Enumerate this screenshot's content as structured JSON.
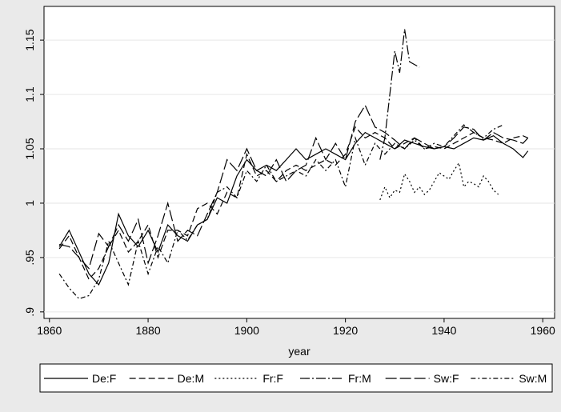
{
  "chart_data": {
    "type": "line",
    "x_label": "year",
    "legend": "bottom",
    "grid": true,
    "xlim": [
      1858.9,
      1962.4
    ],
    "xticks": [
      1860,
      1880,
      1900,
      1920,
      1940,
      1960
    ],
    "ylim": [
      0.894,
      1.181
    ],
    "yticks": [
      {
        "value": 0.9,
        "label": ".9"
      },
      {
        "value": 0.95,
        "label": ".95"
      },
      1,
      1.05,
      1.1,
      1.15
    ],
    "series": [
      {
        "name": "De:F",
        "color": "#000000",
        "dash": "none",
        "x": [
          1862,
          1864,
          1866,
          1868,
          1870,
          1872,
          1874,
          1876,
          1878,
          1880,
          1882,
          1884,
          1886,
          1888,
          1890,
          1892,
          1894,
          1896,
          1898,
          1900,
          1902,
          1904,
          1906,
          1908,
          1910,
          1912,
          1914,
          1916,
          1918,
          1920,
          1922,
          1924,
          1926,
          1928,
          1930,
          1932,
          1934,
          1936,
          1938,
          1940,
          1942,
          1944,
          1946,
          1948,
          1950,
          1952,
          1954,
          1956,
          1957
        ],
        "values": [
          0.96,
          0.975,
          0.955,
          0.935,
          0.925,
          0.945,
          0.99,
          0.97,
          0.96,
          0.975,
          0.955,
          0.98,
          0.97,
          0.965,
          0.98,
          0.985,
          1.005,
          1.0,
          1.025,
          1.04,
          1.03,
          1.035,
          1.03,
          1.04,
          1.05,
          1.04,
          1.045,
          1.05,
          1.045,
          1.04,
          1.055,
          1.065,
          1.06,
          1.055,
          1.05,
          1.058,
          1.055,
          1.052,
          1.05,
          1.052,
          1.05,
          1.055,
          1.06,
          1.058,
          1.062,
          1.055,
          1.05,
          1.042,
          1.048
        ]
      },
      {
        "name": "De:M",
        "color": "#000000",
        "dash": "8 4",
        "x": [
          1862,
          1864,
          1866,
          1868,
          1870,
          1872,
          1874,
          1876,
          1878,
          1880,
          1882,
          1884,
          1886,
          1888,
          1890,
          1892,
          1894,
          1896,
          1898,
          1900,
          1902,
          1904,
          1906,
          1908,
          1910,
          1912,
          1914,
          1916,
          1918,
          1920,
          1922,
          1924,
          1926,
          1928,
          1930,
          1932,
          1934,
          1936,
          1938,
          1940,
          1942,
          1944,
          1946,
          1948,
          1950,
          1952,
          1954,
          1956,
          1957
        ],
        "values": [
          0.958,
          0.97,
          0.95,
          0.93,
          0.94,
          0.96,
          0.975,
          0.955,
          0.965,
          0.98,
          0.95,
          0.975,
          0.975,
          0.97,
          0.995,
          1.0,
          0.99,
          1.01,
          1.005,
          1.045,
          1.025,
          1.03,
          1.02,
          1.03,
          1.035,
          1.03,
          1.035,
          1.04,
          1.035,
          1.045,
          1.07,
          1.06,
          1.065,
          1.06,
          1.05,
          1.055,
          1.06,
          1.05,
          1.052,
          1.05,
          1.055,
          1.06,
          1.065,
          1.06,
          1.058,
          1.055,
          1.06,
          1.062,
          1.06
        ]
      },
      {
        "name": "Fr:F",
        "color": "#000000",
        "dash": "2 3",
        "x": [
          1927,
          1928,
          1929,
          1930,
          1931,
          1932,
          1933,
          1934,
          1935,
          1936,
          1937,
          1938,
          1939,
          1940,
          1941,
          1942,
          1943,
          1944,
          1945,
          1946,
          1947,
          1948,
          1949,
          1950,
          1951
        ],
        "values": [
          1.003,
          1.015,
          1.005,
          1.012,
          1.01,
          1.027,
          1.02,
          1.01,
          1.015,
          1.008,
          1.012,
          1.02,
          1.028,
          1.025,
          1.022,
          1.03,
          1.037,
          1.015,
          1.02,
          1.018,
          1.015,
          1.025,
          1.02,
          1.012,
          1.008
        ]
      },
      {
        "name": "Fr:M",
        "color": "#000000",
        "dash": "12 3 2 3",
        "x": [
          1927,
          1928,
          1929,
          1930,
          1931,
          1932,
          1933,
          1935
        ],
        "values": [
          1.04,
          1.06,
          1.1,
          1.14,
          1.12,
          1.16,
          1.13,
          1.125
        ]
      },
      {
        "name": "Sw:F",
        "color": "#000000",
        "dash": "14 4",
        "x": [
          1862,
          1864,
          1866,
          1868,
          1870,
          1872,
          1874,
          1876,
          1878,
          1880,
          1882,
          1884,
          1886,
          1888,
          1890,
          1892,
          1894,
          1896,
          1898,
          1900,
          1902,
          1904,
          1906,
          1908,
          1910,
          1912,
          1914,
          1916,
          1918,
          1920,
          1922,
          1924,
          1926,
          1928,
          1930,
          1932,
          1934,
          1936,
          1938,
          1940,
          1942,
          1944,
          1946,
          1948,
          1950,
          1952,
          1954,
          1956,
          1957
        ],
        "values": [
          0.962,
          0.96,
          0.95,
          0.94,
          0.972,
          0.96,
          0.98,
          0.965,
          0.985,
          0.945,
          0.97,
          1.0,
          0.965,
          0.975,
          0.97,
          0.99,
          1.01,
          1.04,
          1.03,
          1.05,
          1.03,
          1.025,
          1.04,
          1.02,
          1.03,
          1.035,
          1.06,
          1.04,
          1.055,
          1.04,
          1.075,
          1.09,
          1.07,
          1.065,
          1.058,
          1.05,
          1.06,
          1.055,
          1.05,
          1.052,
          1.06,
          1.07,
          1.068,
          1.058,
          1.065,
          1.06,
          1.058,
          1.055,
          1.06
        ]
      },
      {
        "name": "Sw:M",
        "color": "#000000",
        "dash": "6 3 2 3",
        "x": [
          1862,
          1864,
          1866,
          1868,
          1870,
          1872,
          1874,
          1876,
          1878,
          1880,
          1882,
          1884,
          1886,
          1888,
          1890,
          1892,
          1894,
          1896,
          1898,
          1900,
          1902,
          1904,
          1906,
          1908,
          1910,
          1912,
          1914,
          1916,
          1918,
          1920,
          1922,
          1924,
          1926,
          1928,
          1930,
          1932,
          1934,
          1936,
          1938,
          1940,
          1942,
          1944,
          1946,
          1948,
          1950,
          1952
        ],
        "values": [
          0.935,
          0.922,
          0.912,
          0.915,
          0.93,
          0.965,
          0.945,
          0.925,
          0.965,
          0.935,
          0.96,
          0.945,
          0.975,
          0.966,
          0.98,
          0.985,
          1.01,
          1.015,
          1.005,
          1.03,
          1.02,
          1.035,
          1.02,
          1.025,
          1.03,
          1.025,
          1.04,
          1.03,
          1.04,
          1.015,
          1.06,
          1.035,
          1.055,
          1.045,
          1.055,
          1.05,
          1.058,
          1.05,
          1.055,
          1.052,
          1.062,
          1.072,
          1.065,
          1.06,
          1.068,
          1.072
        ]
      }
    ]
  }
}
